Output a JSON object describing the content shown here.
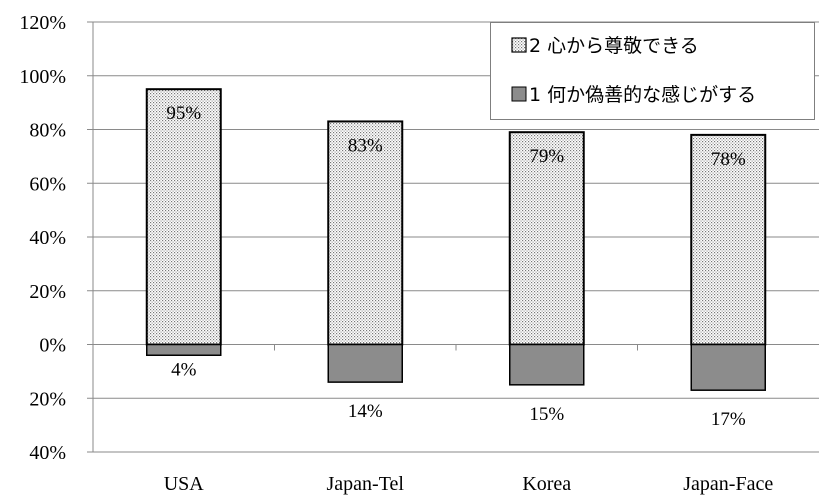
{
  "chart_data": {
    "type": "bar",
    "stacked": true,
    "categories": [
      "USA",
      "Japan-Tel",
      "Korea",
      "Japan-Face"
    ],
    "series": [
      {
        "name": "2 心から尊敬できる",
        "values": [
          95,
          83,
          79,
          78
        ],
        "labels": [
          "95%",
          "83%",
          "79%",
          "78%"
        ],
        "fill": "dotted",
        "color": "#ffffff"
      },
      {
        "name": "1 何か偽善的な感じがする",
        "values": [
          -4,
          -14,
          -15,
          -17
        ],
        "labels": [
          "4%",
          "14%",
          "15%",
          "17%"
        ],
        "fill": "solid",
        "color": "#8c8c8c"
      }
    ],
    "ylim": [
      -40,
      120
    ],
    "yticks": [
      120,
      100,
      80,
      60,
      40,
      20,
      0,
      -20,
      -40
    ],
    "ytick_labels": [
      "120%",
      "100%",
      "80%",
      "60%",
      "40%",
      "20%",
      "0%",
      "20%",
      "40%"
    ],
    "grid": true,
    "legend": "top-right",
    "title": "",
    "xlabel": "",
    "ylabel": ""
  }
}
